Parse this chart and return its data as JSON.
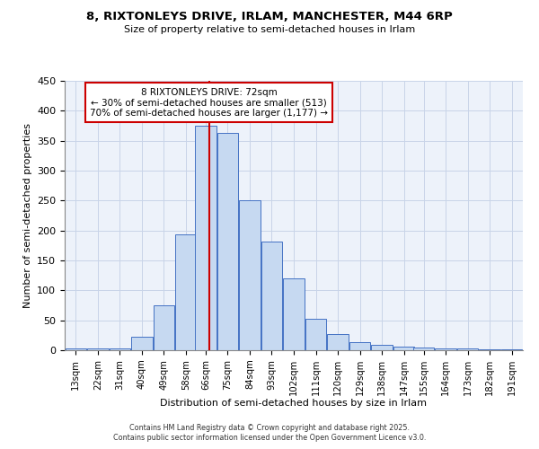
{
  "title_line1": "8, RIXTONLEYS DRIVE, IRLAM, MANCHESTER, M44 6RP",
  "title_line2": "Size of property relative to semi-detached houses in Irlam",
  "xlabel": "Distribution of semi-detached houses by size in Irlam",
  "ylabel": "Number of semi-detached properties",
  "bin_labels": [
    "13sqm",
    "22sqm",
    "31sqm",
    "40sqm",
    "49sqm",
    "58sqm",
    "66sqm",
    "75sqm",
    "84sqm",
    "93sqm",
    "102sqm",
    "111sqm",
    "120sqm",
    "129sqm",
    "138sqm",
    "147sqm",
    "155sqm",
    "164sqm",
    "173sqm",
    "182sqm",
    "191sqm"
  ],
  "bin_lefts": [
    13,
    22,
    31,
    40,
    49,
    58,
    66,
    75,
    84,
    93,
    102,
    111,
    120,
    129,
    138,
    147,
    155,
    164,
    173,
    182,
    191
  ],
  "bin_width": 9,
  "bar_heights": [
    3,
    3,
    3,
    23,
    75,
    193,
    375,
    363,
    250,
    182,
    120,
    53,
    27,
    13,
    9,
    6,
    5,
    3,
    3,
    2,
    2
  ],
  "bar_facecolor": "#c6d9f1",
  "bar_edgecolor": "#4472c4",
  "property_line_x": 72,
  "annotation_title": "8 RIXTONLEYS DRIVE: 72sqm",
  "annotation_line2": "← 30% of semi-detached houses are smaller (513)",
  "annotation_line3": "70% of semi-detached houses are larger (1,177) →",
  "annotation_box_edgecolor": "#cc0000",
  "vline_color": "#cc0000",
  "ylim": [
    0,
    450
  ],
  "xlim": [
    13,
    200
  ],
  "yticks": [
    0,
    50,
    100,
    150,
    200,
    250,
    300,
    350,
    400,
    450
  ],
  "grid_color": "#c8d4e8",
  "bg_color": "#edf2fa",
  "footer1": "Contains HM Land Registry data © Crown copyright and database right 2025.",
  "footer2": "Contains public sector information licensed under the Open Government Licence v3.0."
}
